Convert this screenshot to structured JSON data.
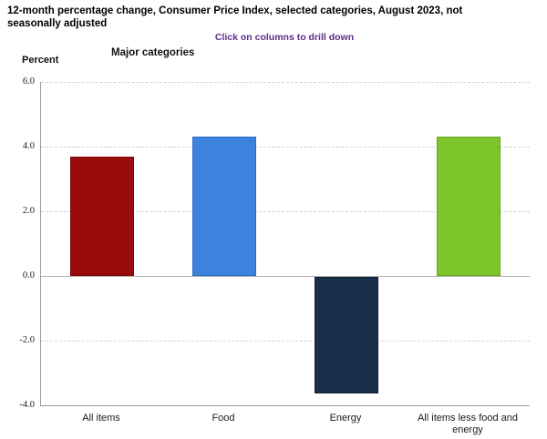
{
  "header": {
    "title": "12-month percentage change, Consumer Price Index, selected categories, August 2023, not seasonally adjusted",
    "drill_hint": "Click on columns to drill down",
    "group_label": "Major categories",
    "unit_label": "Percent"
  },
  "colors": {
    "hint_text": "#5b2d86",
    "axis_line": "#9a9a9a",
    "gridline": "#d2d2d2",
    "zero_line": "#b4b4b4",
    "background": "#ffffff"
  },
  "chart_data": {
    "type": "bar",
    "title": "12-month percentage change, Consumer Price Index, selected categories, August 2023, not seasonally adjusted",
    "subtitle": "Click on columns to drill down",
    "group_label": "Major categories",
    "xlabel": "",
    "ylabel": "Percent",
    "categories": [
      "All items",
      "Food",
      "Energy",
      "All items less food and energy"
    ],
    "values": [
      3.7,
      4.3,
      -3.6,
      4.3
    ],
    "bar_colors": [
      "#9a0a0a",
      "#3b83dc",
      "#1b2e4b",
      "#7dc52a"
    ],
    "bar_border_colors": [
      "#7c0808",
      "#2e6cc0",
      "#101e33",
      "#68a41f"
    ],
    "ylim": [
      -4.0,
      6.0
    ],
    "yticks": [
      6.0,
      4.0,
      2.0,
      0.0,
      -2.0,
      -4.0
    ],
    "ytick_labels": [
      "6.0",
      "4.0",
      "2.0",
      "0.0",
      "-2.0",
      "-4.0"
    ],
    "grid": true,
    "legend": false
  }
}
